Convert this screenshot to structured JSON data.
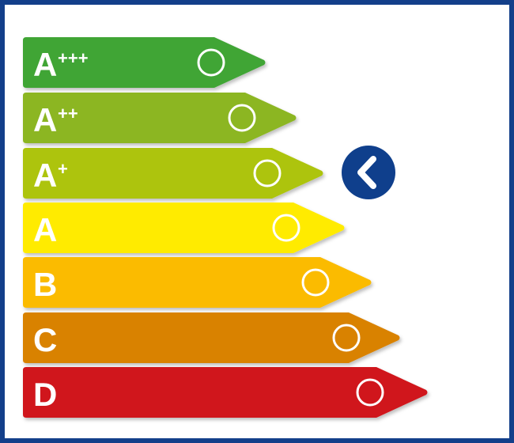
{
  "label": {
    "classes": [
      {
        "letter": "A",
        "sup": "+++",
        "color": "#41a535"
      },
      {
        "letter": "A",
        "sup": "++",
        "color": "#8cb624"
      },
      {
        "letter": "A",
        "sup": "+",
        "color": "#adc40e"
      },
      {
        "letter": "A",
        "sup": "",
        "color": "#ffeb00"
      },
      {
        "letter": "B",
        "sup": "",
        "color": "#fbbb00"
      },
      {
        "letter": "C",
        "sup": "",
        "color": "#d98200"
      },
      {
        "letter": "D",
        "sup": "",
        "color": "#d0171b"
      }
    ],
    "selected_index": 2,
    "indicator_icon": "chevron-left-icon",
    "indicator_color": "#0f3f8c",
    "border_color": "#133f8a"
  }
}
